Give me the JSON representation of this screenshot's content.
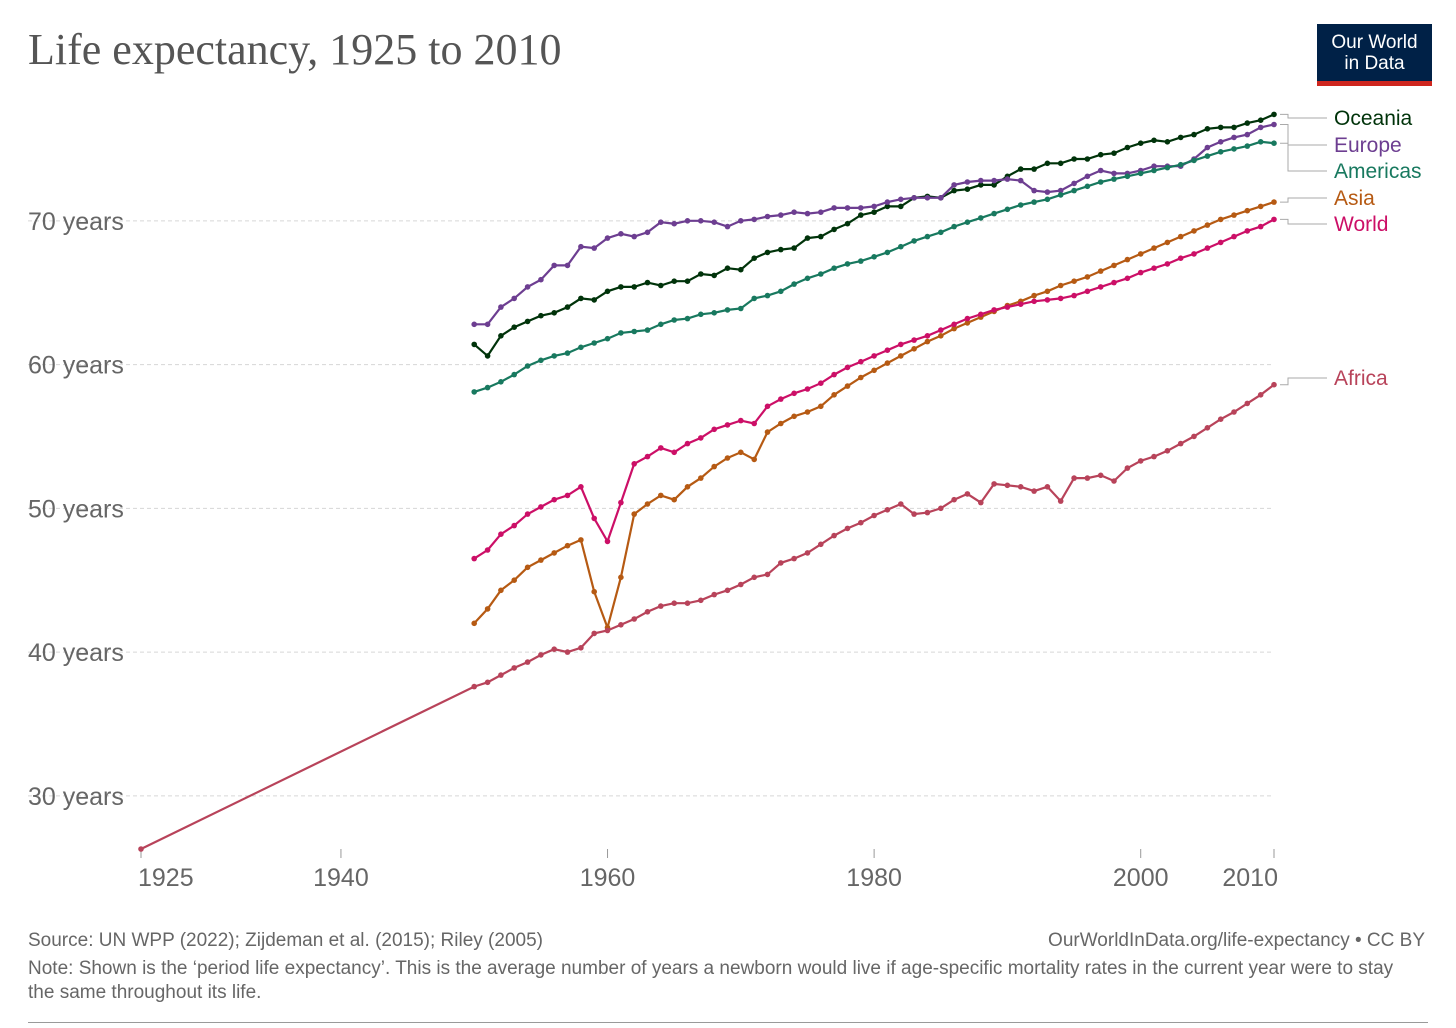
{
  "title": "Life expectancy, 1925 to 2010",
  "logo": {
    "line1": "Our World",
    "line2": "in Data",
    "bg": "#002147",
    "accent": "#ce261e"
  },
  "source": "Source: UN WPP (2022); Zijdeman et al. (2015); Riley (2005)",
  "credit": "OurWorldInData.org/life-expectancy • CC BY",
  "note": "Note: Shown is the ‘period life expectancy’. This is the average number of years a newborn would live if age-specific mortality rates in the current year were to stay the same throughout its life.",
  "chart_data": {
    "type": "line",
    "xlim": [
      1925,
      2010
    ],
    "ylim": [
      26.3,
      77.5
    ],
    "x_ticks": [
      1925,
      1940,
      1960,
      1980,
      2000,
      2010
    ],
    "y_ticks": [
      30,
      40,
      50,
      60,
      70
    ],
    "y_tick_labels": [
      "30 years",
      "40 years",
      "50 years",
      "60 years",
      "70 years"
    ],
    "grid": "horizontal dashed",
    "legend": "right (labels at line ends)",
    "series": [
      {
        "name": "Oceania",
        "color": "#00330a",
        "x_start": 1950,
        "values": [
          61.4,
          60.6,
          62.0,
          62.6,
          63.0,
          63.4,
          63.6,
          64.0,
          64.6,
          64.5,
          65.1,
          65.4,
          65.4,
          65.7,
          65.5,
          65.8,
          65.8,
          66.3,
          66.2,
          66.7,
          66.6,
          67.4,
          67.8,
          68.0,
          68.1,
          68.8,
          68.9,
          69.4,
          69.8,
          70.4,
          70.6,
          71.0,
          71.0,
          71.6,
          71.7,
          71.6,
          72.1,
          72.2,
          72.5,
          72.5,
          73.1,
          73.6,
          73.6,
          74.0,
          74.0,
          74.3,
          74.3,
          74.6,
          74.7,
          75.1,
          75.4,
          75.6,
          75.5,
          75.8,
          76.0,
          76.4,
          76.5,
          76.5,
          76.8,
          77.0,
          77.4
        ]
      },
      {
        "name": "Europe",
        "color": "#6d3e91",
        "x_start": 1950,
        "values": [
          62.8,
          62.8,
          64.0,
          64.6,
          65.4,
          65.9,
          66.9,
          66.9,
          68.2,
          68.1,
          68.8,
          69.1,
          68.9,
          69.2,
          69.9,
          69.8,
          70.0,
          70.0,
          69.9,
          69.6,
          70.0,
          70.1,
          70.3,
          70.4,
          70.6,
          70.5,
          70.6,
          70.9,
          70.9,
          70.9,
          71.0,
          71.3,
          71.5,
          71.6,
          71.6,
          71.6,
          72.5,
          72.7,
          72.8,
          72.8,
          72.9,
          72.8,
          72.1,
          72.0,
          72.1,
          72.6,
          73.1,
          73.5,
          73.3,
          73.3,
          73.5,
          73.8,
          73.8,
          73.8,
          74.3,
          75.1,
          75.5,
          75.8,
          76.0,
          76.5,
          76.7
        ]
      },
      {
        "name": "Americas",
        "color": "#18795f",
        "x_start": 1950,
        "values": [
          58.1,
          58.4,
          58.8,
          59.3,
          59.9,
          60.3,
          60.6,
          60.8,
          61.2,
          61.5,
          61.8,
          62.2,
          62.3,
          62.4,
          62.8,
          63.1,
          63.2,
          63.5,
          63.6,
          63.8,
          63.9,
          64.6,
          64.8,
          65.1,
          65.6,
          66.0,
          66.3,
          66.7,
          67.0,
          67.2,
          67.5,
          67.8,
          68.2,
          68.6,
          68.9,
          69.2,
          69.6,
          69.9,
          70.2,
          70.5,
          70.8,
          71.1,
          71.3,
          71.5,
          71.8,
          72.1,
          72.4,
          72.7,
          72.9,
          73.1,
          73.3,
          73.5,
          73.7,
          73.9,
          74.2,
          74.5,
          74.8,
          75.0,
          75.2,
          75.5,
          75.4
        ]
      },
      {
        "name": "Asia",
        "color": "#b65a13",
        "x_start": 1950,
        "values": [
          42.0,
          43.0,
          44.3,
          45.0,
          45.9,
          46.4,
          46.9,
          47.4,
          47.8,
          44.2,
          41.7,
          45.2,
          49.6,
          50.3,
          50.9,
          50.6,
          51.5,
          52.1,
          52.9,
          53.5,
          53.9,
          53.4,
          55.3,
          55.9,
          56.4,
          56.7,
          57.1,
          57.9,
          58.5,
          59.1,
          59.6,
          60.1,
          60.6,
          61.1,
          61.6,
          62.0,
          62.5,
          62.9,
          63.3,
          63.7,
          64.1,
          64.4,
          64.8,
          65.1,
          65.5,
          65.8,
          66.1,
          66.5,
          66.9,
          67.3,
          67.7,
          68.1,
          68.5,
          68.9,
          69.3,
          69.7,
          70.1,
          70.4,
          70.7,
          71.0,
          71.3
        ]
      },
      {
        "name": "World",
        "color": "#cc0f67",
        "x_start": 1950,
        "values": [
          46.5,
          47.1,
          48.2,
          48.8,
          49.6,
          50.1,
          50.6,
          50.9,
          51.5,
          49.3,
          47.7,
          50.4,
          53.1,
          53.6,
          54.2,
          53.9,
          54.5,
          54.9,
          55.5,
          55.8,
          56.1,
          55.9,
          57.1,
          57.6,
          58.0,
          58.3,
          58.7,
          59.3,
          59.8,
          60.2,
          60.6,
          61.0,
          61.4,
          61.7,
          62.0,
          62.4,
          62.8,
          63.2,
          63.5,
          63.8,
          64.0,
          64.2,
          64.4,
          64.5,
          64.6,
          64.8,
          65.1,
          65.4,
          65.7,
          66.0,
          66.4,
          66.7,
          67.0,
          67.4,
          67.7,
          68.1,
          68.5,
          68.9,
          69.3,
          69.6,
          70.1
        ]
      },
      {
        "name": "Africa",
        "color": "#b8435a",
        "x_start": 1950,
        "x_prefix": [
          1925
        ],
        "values_prefix": [
          26.3
        ],
        "values": [
          37.6,
          37.9,
          38.4,
          38.9,
          39.3,
          39.8,
          40.2,
          40.0,
          40.3,
          41.3,
          41.5,
          41.9,
          42.3,
          42.8,
          43.2,
          43.4,
          43.4,
          43.6,
          44.0,
          44.3,
          44.7,
          45.2,
          45.4,
          46.2,
          46.5,
          46.9,
          47.5,
          48.1,
          48.6,
          49.0,
          49.5,
          49.9,
          50.3,
          49.6,
          49.7,
          50.0,
          50.6,
          51.0,
          50.4,
          51.7,
          51.6,
          51.5,
          51.2,
          51.5,
          50.5,
          52.1,
          52.1,
          52.3,
          51.9,
          52.8,
          53.3,
          53.6,
          54.0,
          54.5,
          55.0,
          55.6,
          56.2,
          56.7,
          57.3,
          57.9,
          58.6
        ]
      }
    ]
  }
}
